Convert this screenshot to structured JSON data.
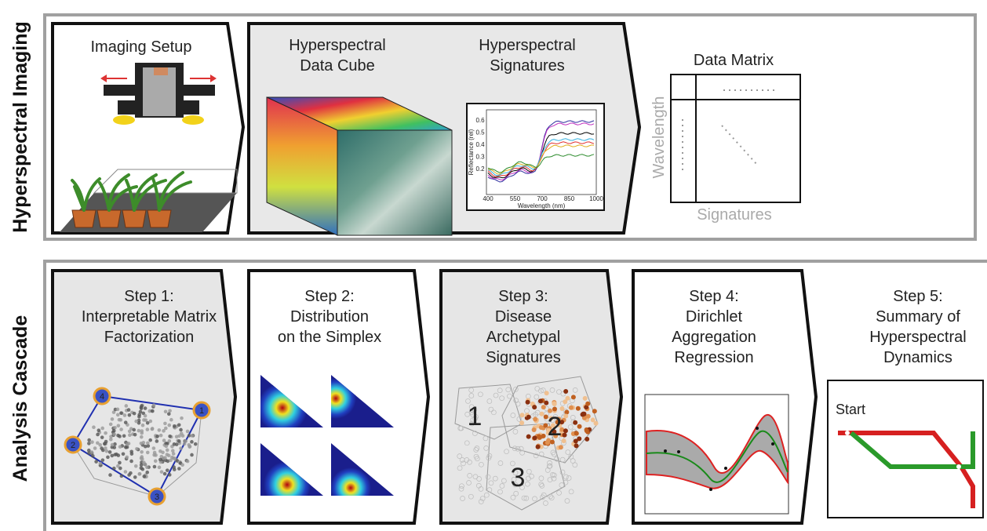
{
  "sections": [
    {
      "label": "Hyperspectral Imaging"
    },
    {
      "label": "Analysis Cascade"
    }
  ],
  "imaging": {
    "setup": {
      "title": "Imaging Setup"
    },
    "cube": {
      "title": [
        "Hyperspectral",
        "Data Cube"
      ]
    },
    "signatures": {
      "title": [
        "Hyperspectral",
        "Signatures"
      ],
      "y_label": "Reflectance (rel)",
      "x_label": "Wavelength (nm)",
      "x_ticks": [
        "400",
        "550",
        "700",
        "850",
        "1000"
      ],
      "y_ticks": [
        "0.2",
        "0.3",
        "0.4",
        "0.5",
        "0.6"
      ]
    },
    "matrix": {
      "title": "Data Matrix",
      "row_label": "Wavelength",
      "column_label": "Signatures"
    }
  },
  "steps": [
    {
      "title": [
        "Step 1:",
        "Interpretable Matrix",
        "Factorization"
      ],
      "markers": [
        "1",
        "2",
        "3",
        "4"
      ]
    },
    {
      "title": [
        "Step 2:",
        "Distribution",
        "on the Simplex"
      ]
    },
    {
      "title": [
        "Step 3:",
        "Disease",
        "Archetypal",
        "Signatures"
      ],
      "clusters": [
        "1",
        "2",
        "3"
      ]
    },
    {
      "title": [
        "Step 4:",
        "Dirichlet",
        "Aggregation",
        "Regression"
      ]
    },
    {
      "title": [
        "Step 5:",
        "Summary of",
        "Hyperspectral",
        "Dynamics"
      ],
      "start": "Start"
    }
  ]
}
